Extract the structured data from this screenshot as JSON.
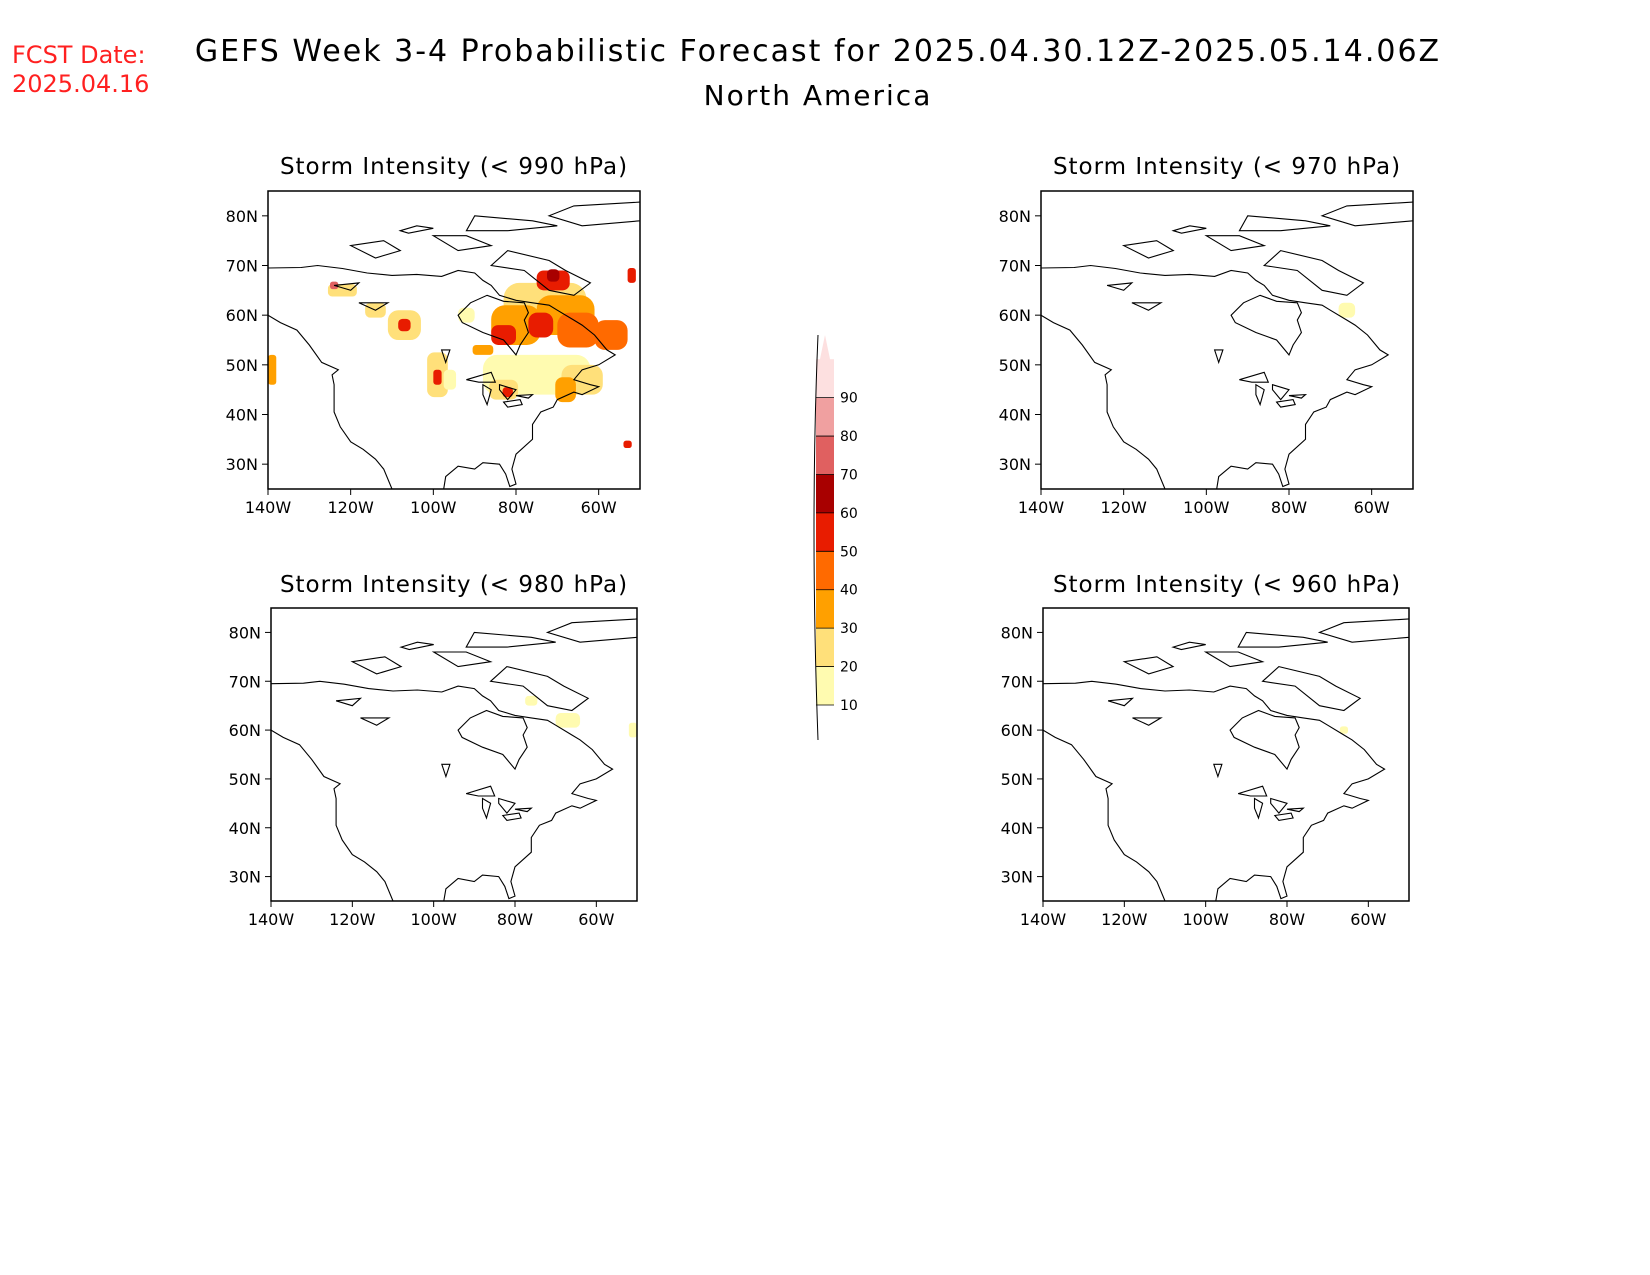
{
  "header": {
    "fcst_label": "FCST Date:",
    "fcst_date": "2025.04.16",
    "title": "GEFS Week 3-4 Probabilistic Forecast for 2025.04.30.12Z-2025.05.14.06Z",
    "subtitle": "North America",
    "fcst_color": "#ff2020"
  },
  "axes": {
    "lon_ticks": [
      "140W",
      "120W",
      "100W",
      "80W",
      "60W"
    ],
    "lat_ticks": [
      "30N",
      "40N",
      "50N",
      "60N",
      "70N",
      "80N"
    ],
    "lon_values": [
      -140,
      -120,
      -100,
      -80,
      -60
    ],
    "lat_values": [
      30,
      40,
      50,
      60,
      70,
      80
    ],
    "lon_range": [
      -140,
      -50
    ],
    "lat_range": [
      25,
      85
    ]
  },
  "colorbar": {
    "levels": [
      "10",
      "20",
      "30",
      "40",
      "50",
      "60",
      "70",
      "80",
      "90"
    ],
    "colors": [
      "#fffbb0",
      "#ffe07a",
      "#ffa000",
      "#ff6a00",
      "#e81c00",
      "#a80000",
      "#e06060",
      "#f0a0a0",
      "#fde0e0"
    ]
  },
  "panels": [
    {
      "title": "Storm Intensity (< 990 hPa)",
      "blobs": [
        {
          "lon": -73,
          "lat": 62,
          "w": 20,
          "h": 9,
          "level": 1
        },
        {
          "lon": -68,
          "lat": 60,
          "w": 14,
          "h": 8,
          "level": 2
        },
        {
          "lon": -80,
          "lat": 58,
          "w": 12,
          "h": 8,
          "level": 2
        },
        {
          "lon": -65,
          "lat": 57,
          "w": 10,
          "h": 7,
          "level": 3
        },
        {
          "lon": -74,
          "lat": 58,
          "w": 6,
          "h": 5,
          "level": 4
        },
        {
          "lon": -71,
          "lat": 67,
          "w": 8,
          "h": 4,
          "level": 4
        },
        {
          "lon": -71,
          "lat": 68,
          "w": 3,
          "h": 2.5,
          "level": 5
        },
        {
          "lon": -83,
          "lat": 56,
          "w": 6,
          "h": 4,
          "level": 4
        },
        {
          "lon": -57,
          "lat": 56,
          "w": 8,
          "h": 6,
          "level": 3
        },
        {
          "lon": -75,
          "lat": 48,
          "w": 26,
          "h": 8,
          "level": 0
        },
        {
          "lon": -64,
          "lat": 47,
          "w": 10,
          "h": 6,
          "level": 1
        },
        {
          "lon": -68,
          "lat": 45,
          "w": 5,
          "h": 5,
          "level": 2
        },
        {
          "lon": -83,
          "lat": 45,
          "w": 7,
          "h": 4,
          "level": 1
        },
        {
          "lon": -82,
          "lat": 44.5,
          "w": 2.5,
          "h": 2,
          "level": 4
        },
        {
          "lon": -107,
          "lat": 58,
          "w": 8,
          "h": 6,
          "level": 1
        },
        {
          "lon": -107,
          "lat": 58,
          "w": 3,
          "h": 2.5,
          "level": 4
        },
        {
          "lon": -99,
          "lat": 48,
          "w": 5,
          "h": 9,
          "level": 1
        },
        {
          "lon": -99,
          "lat": 47.5,
          "w": 2,
          "h": 3,
          "level": 4
        },
        {
          "lon": -122,
          "lat": 65,
          "w": 7,
          "h": 2.5,
          "level": 1
        },
        {
          "lon": -124,
          "lat": 66,
          "w": 2,
          "h": 1.5,
          "level": 6
        },
        {
          "lon": -114,
          "lat": 61,
          "w": 5,
          "h": 3,
          "level": 1
        },
        {
          "lon": -139,
          "lat": 49,
          "w": 2,
          "h": 6,
          "level": 2
        },
        {
          "lon": -53,
          "lat": 34,
          "w": 2,
          "h": 1.5,
          "level": 4
        },
        {
          "lon": -52,
          "lat": 68,
          "w": 2,
          "h": 3,
          "level": 4
        },
        {
          "lon": -88,
          "lat": 53,
          "w": 5,
          "h": 2,
          "level": 2
        },
        {
          "lon": -92,
          "lat": 60,
          "w": 4,
          "h": 3,
          "level": 0
        },
        {
          "lon": -96,
          "lat": 47,
          "w": 3,
          "h": 4,
          "level": 0
        }
      ]
    },
    {
      "title": "Storm Intensity (< 970 hPa)",
      "blobs": [
        {
          "lon": -66,
          "lat": 61,
          "w": 4,
          "h": 3,
          "level": 0
        }
      ]
    },
    {
      "title": "Storm Intensity (< 980 hPa)",
      "blobs": [
        {
          "lon": -67,
          "lat": 62,
          "w": 6,
          "h": 3,
          "level": 0
        },
        {
          "lon": -76,
          "lat": 66,
          "w": 3,
          "h": 2,
          "level": 0
        },
        {
          "lon": -51,
          "lat": 60,
          "w": 2,
          "h": 3,
          "level": 0
        }
      ]
    },
    {
      "title": "Storm Intensity (< 960 hPa)",
      "blobs": [
        {
          "lon": -66,
          "lat": 60,
          "w": 2,
          "h": 1.5,
          "level": 0
        }
      ]
    }
  ]
}
